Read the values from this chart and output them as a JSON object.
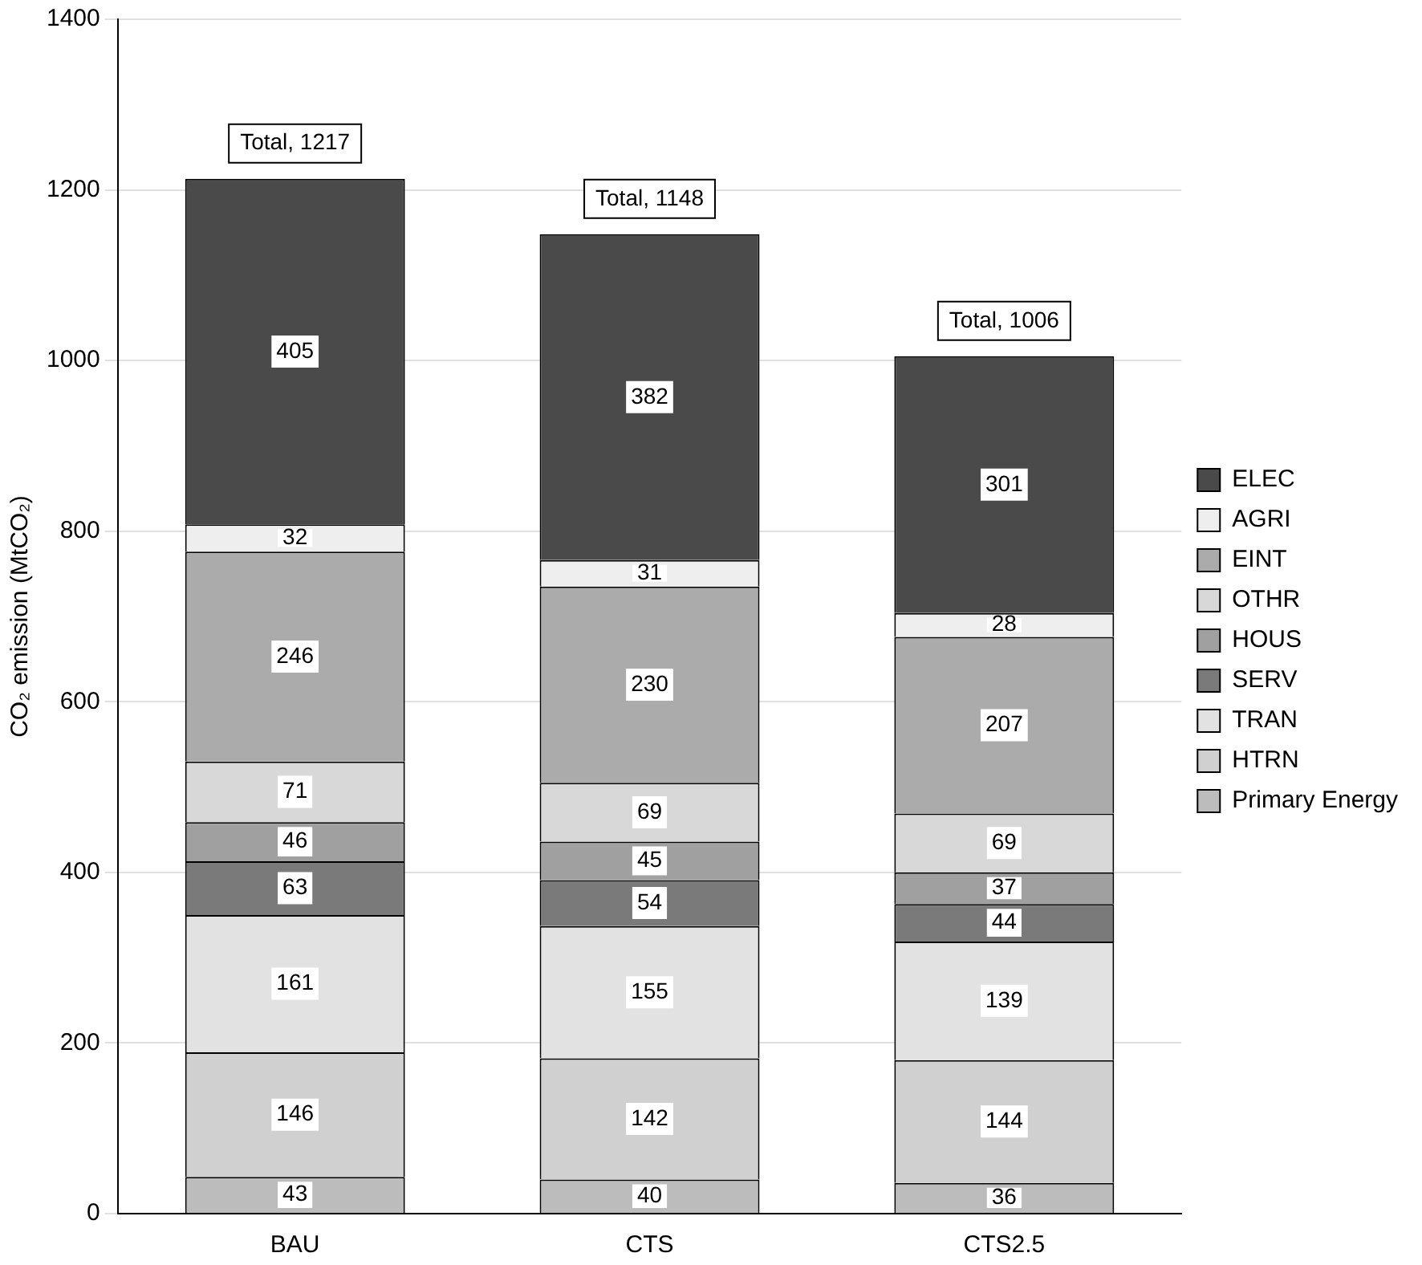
{
  "chart_data": {
    "type": "bar",
    "stacked": true,
    "ylabel": "CO₂ emission (MtCO₂)",
    "categories": [
      "BAU",
      "CTS",
      "CTS2.5"
    ],
    "series": [
      {
        "name": "Primary Energy",
        "color": "#bcbcbc",
        "values": [
          43,
          40,
          36
        ]
      },
      {
        "name": "HTRN",
        "color": "#d0d0d0",
        "values": [
          146,
          142,
          144
        ]
      },
      {
        "name": "TRAN",
        "color": "#e2e2e2",
        "values": [
          161,
          155,
          139
        ]
      },
      {
        "name": "SERV",
        "color": "#7a7a7a",
        "values": [
          63,
          54,
          44
        ]
      },
      {
        "name": "HOUS",
        "color": "#a0a0a0",
        "values": [
          46,
          45,
          37
        ]
      },
      {
        "name": "OTHR",
        "color": "#d8d8d8",
        "values": [
          71,
          69,
          69
        ]
      },
      {
        "name": "EINT",
        "color": "#ababab",
        "values": [
          246,
          230,
          207
        ]
      },
      {
        "name": "AGRI",
        "color": "#eeeeee",
        "values": [
          32,
          31,
          28
        ]
      },
      {
        "name": "ELEC",
        "color": "#4a4a4a",
        "values": [
          405,
          382,
          301
        ]
      }
    ],
    "totals": [
      "Total, 1217",
      "Total, 1148",
      "Total, 1006"
    ],
    "ylim": [
      0,
      1400
    ],
    "yticks": [
      0,
      200,
      400,
      600,
      800,
      1000,
      1200,
      1400
    ],
    "grid": "y",
    "legend": "right",
    "data_labels": true
  }
}
